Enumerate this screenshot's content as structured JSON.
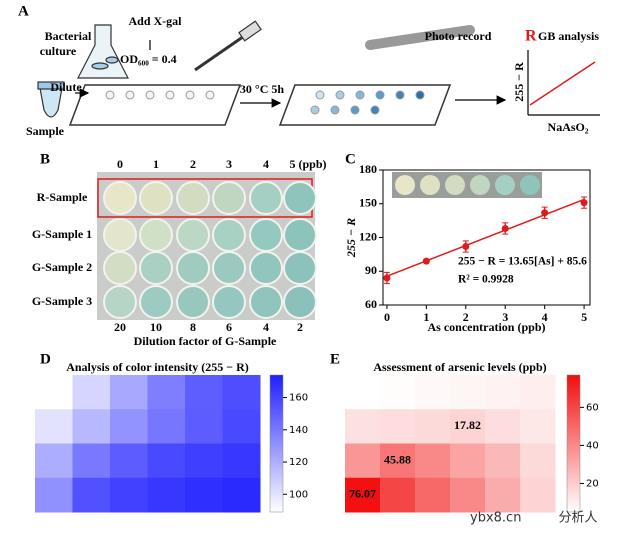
{
  "panel_labels": [
    "A",
    "B",
    "C",
    "D",
    "E"
  ],
  "panel_a": {
    "culture": [
      "Bacterial",
      "culture"
    ],
    "add": "Add X-gal",
    "od": "OD₆₀₀ = 0.4",
    "dilute": "Dilute",
    "sample": "Sample",
    "incubate": "30 °C 5h",
    "photo": "Photo record",
    "rgb_initial": "R",
    "rgb_rest": "GB analysis",
    "y_label": "255 − R",
    "x_label": "NaAsO₂"
  },
  "panel_b": {
    "concentrations": [
      "0",
      "1",
      "2",
      "3",
      "4",
      "5 (ppb)"
    ],
    "rows": [
      "R-Sample",
      "G-Sample 1",
      "G-Sample 2",
      "G-Sample 3"
    ],
    "dilutions": [
      "20",
      "10",
      "8",
      "6",
      "4",
      "2"
    ],
    "x_label": "Dilution factor of G-Sample",
    "well_colors": [
      [
        "#e8e6c8",
        "#dfe2c2",
        "#d3dcc0",
        "#c1d6c0",
        "#a6cfc4",
        "#8fc4ba"
      ],
      [
        "#e3e6cc",
        "#cfe0c6",
        "#bcd8c4",
        "#a8d1c4",
        "#95c8bf",
        "#8cc3bb"
      ],
      [
        "#d2ddc4",
        "#a9d0c3",
        "#9fcbc1",
        "#9bc9bf",
        "#92c5bd",
        "#8dc2bc"
      ],
      [
        "#b7d5c6",
        "#9dcac1",
        "#98c7be",
        "#95c6bf",
        "#90c4bc",
        "#8bc1ba"
      ]
    ]
  },
  "chart_data": [
    {
      "type": "scatter",
      "x": [
        0,
        1,
        2,
        3,
        4,
        5
      ],
      "values": [
        84,
        99,
        112,
        128,
        142,
        151
      ],
      "errors": [
        5,
        1,
        5,
        5,
        5,
        5
      ],
      "color": "#e31a1c",
      "xlim": [
        -0.1,
        5.15
      ],
      "ylim": [
        60,
        180
      ],
      "xticks": [
        0,
        1,
        2,
        3,
        4,
        5
      ],
      "yticks": [
        60,
        90,
        120,
        150,
        180
      ],
      "x_label": "As concentration (ppb)",
      "y_label": "255 − R",
      "fit": {
        "slope": 13.65,
        "intercept": 85.6
      },
      "annotations": [
        "255 − R = 13.65[As] + 85.6",
        "R² = 0.9928"
      ]
    },
    {
      "type": "heatmap",
      "title": "Analysis of color intensity (255 − R)",
      "values": [
        [
          88,
          105,
          122,
          138,
          150,
          156
        ],
        [
          100,
          116,
          130,
          141,
          151,
          158
        ],
        [
          120,
          140,
          151,
          158,
          162,
          165
        ],
        [
          131,
          155,
          161,
          165,
          168,
          170
        ]
      ],
      "colors": [
        "#ffffff",
        "#1f1fff"
      ],
      "clim": [
        89,
        174
      ],
      "cticks": [
        100,
        120,
        140,
        160
      ]
    },
    {
      "type": "heatmap",
      "title": "Assessment of arsenic levels (ppb)",
      "values": [
        [
          5,
          6,
          7,
          8,
          9,
          10
        ],
        [
          14,
          15,
          16,
          17.82,
          15,
          12
        ],
        [
          36,
          45.88,
          40,
          32,
          26,
          16
        ],
        [
          76.07,
          60,
          50,
          40,
          30,
          18
        ]
      ],
      "value_labels": [
        [
          null,
          null,
          null,
          null,
          null,
          null
        ],
        [
          null,
          null,
          null,
          "17.82",
          null,
          null
        ],
        [
          null,
          "45.88",
          null,
          null,
          null,
          null
        ],
        [
          "76.07",
          null,
          null,
          null,
          null,
          null
        ]
      ],
      "colors": [
        "#ffffff",
        "#f20d0d"
      ],
      "clim": [
        5,
        77
      ],
      "cticks": [
        20,
        40,
        60
      ]
    }
  ],
  "watermark": [
    "ybx8.cn",
    "分析人"
  ]
}
